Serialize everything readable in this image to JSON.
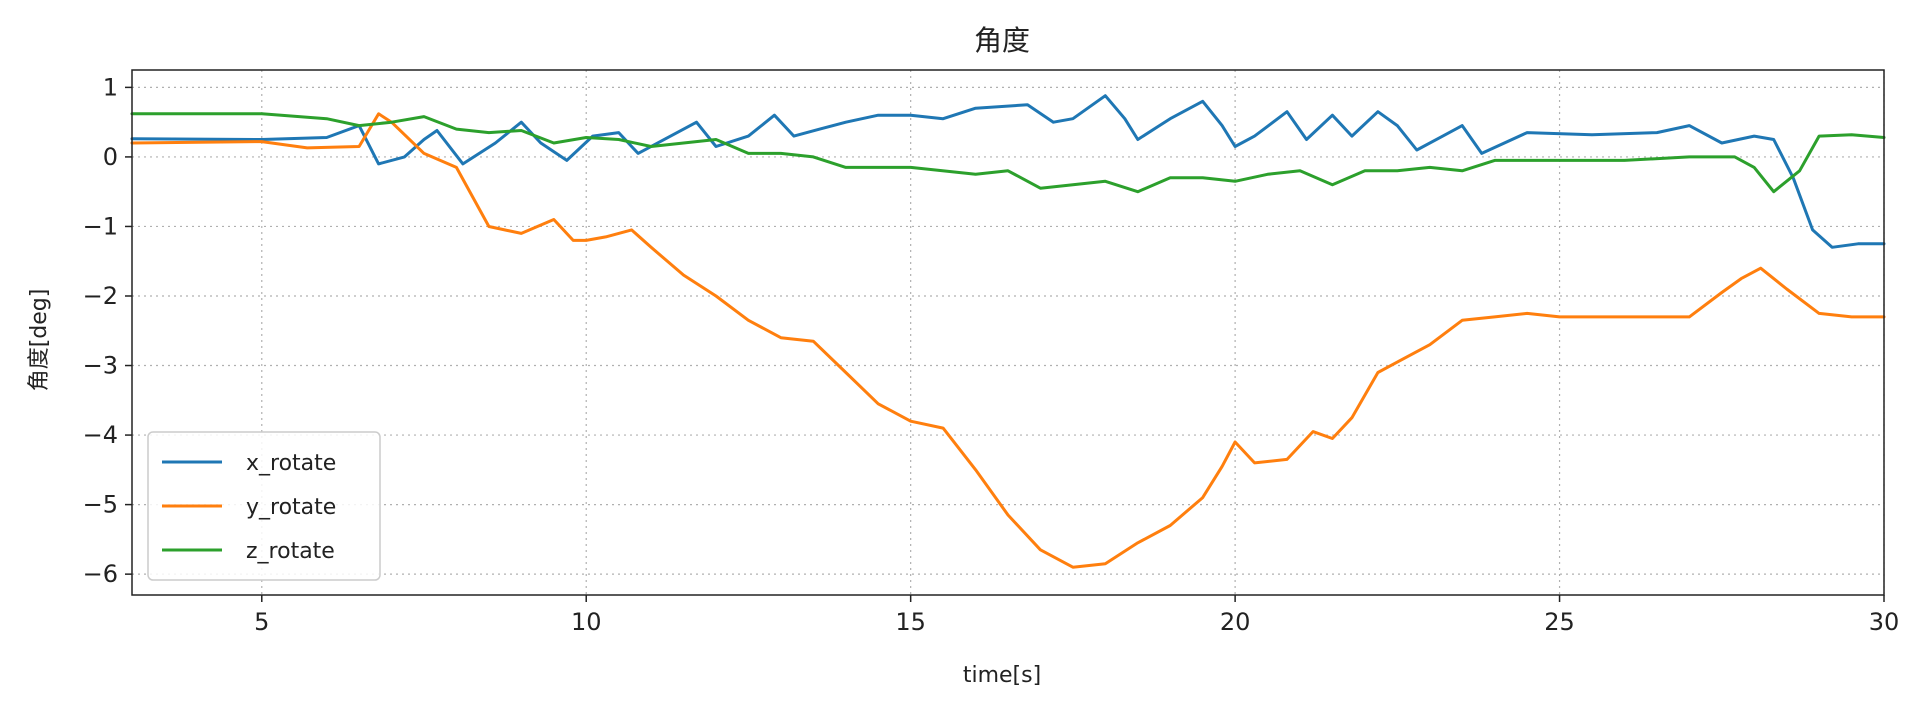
{
  "chart_data": {
    "type": "line",
    "title": "角度",
    "xlabel": "time[s]",
    "ylabel": "角度[deg]",
    "xlim": [
      3,
      30
    ],
    "ylim": [
      -6.3,
      1.25
    ],
    "xticks": [
      5,
      10,
      15,
      20,
      25,
      30
    ],
    "xtick_labels": [
      "5",
      "10",
      "15",
      "20",
      "25",
      "30"
    ],
    "yticks": [
      1,
      0,
      -1,
      -2,
      -3,
      -4,
      -5,
      -6
    ],
    "ytick_labels": [
      "1",
      "0",
      "−1",
      "−2",
      "−3",
      "−4",
      "−5",
      "−6"
    ],
    "grid": true,
    "legend_position": "lower-left",
    "series": [
      {
        "name": "x_rotate",
        "color": "#1f77b4",
        "x": [
          3,
          5,
          6,
          6.5,
          6.8,
          7.2,
          7.5,
          7.7,
          8.1,
          8.6,
          9.0,
          9.3,
          9.7,
          10.1,
          10.5,
          10.8,
          11.3,
          11.7,
          12.0,
          12.5,
          12.9,
          13.2,
          13.6,
          14.0,
          14.5,
          15.0,
          15.5,
          16.0,
          16.8,
          17.2,
          17.5,
          18.0,
          18.3,
          18.5,
          19.0,
          19.5,
          19.8,
          20.0,
          20.3,
          20.8,
          21.1,
          21.5,
          21.8,
          22.2,
          22.5,
          22.8,
          23.2,
          23.5,
          23.8,
          24.5,
          25.5,
          26.5,
          27.0,
          27.5,
          28.0,
          28.3,
          28.6,
          28.9,
          29.2,
          29.6,
          30
        ],
        "y": [
          0.26,
          0.25,
          0.28,
          0.45,
          -0.1,
          0.0,
          0.25,
          0.38,
          -0.1,
          0.2,
          0.5,
          0.2,
          -0.05,
          0.3,
          0.35,
          0.05,
          0.3,
          0.5,
          0.15,
          0.3,
          0.6,
          0.3,
          0.4,
          0.5,
          0.6,
          0.6,
          0.55,
          0.7,
          0.75,
          0.5,
          0.55,
          0.88,
          0.55,
          0.25,
          0.55,
          0.8,
          0.45,
          0.15,
          0.3,
          0.65,
          0.25,
          0.6,
          0.3,
          0.65,
          0.45,
          0.1,
          0.3,
          0.45,
          0.05,
          0.35,
          0.32,
          0.35,
          0.45,
          0.2,
          0.3,
          0.25,
          -0.3,
          -1.05,
          -1.3,
          -1.25,
          -1.25
        ]
      },
      {
        "name": "y_rotate",
        "color": "#ff7f0e",
        "x": [
          3,
          5,
          5.7,
          6.5,
          6.8,
          7.0,
          7.5,
          8.0,
          8.5,
          9.0,
          9.5,
          9.8,
          10.0,
          10.3,
          10.7,
          11.0,
          11.5,
          12.0,
          12.5,
          13.0,
          13.5,
          14.0,
          14.5,
          15.0,
          15.5,
          16.0,
          16.5,
          17.0,
          17.5,
          18.0,
          18.5,
          19.0,
          19.5,
          19.8,
          20.0,
          20.3,
          20.8,
          21.2,
          21.5,
          21.8,
          22.2,
          22.5,
          23.0,
          23.5,
          24.0,
          24.5,
          25.0,
          26.0,
          27.0,
          27.5,
          27.8,
          28.1,
          28.5,
          29.0,
          29.5,
          30
        ],
        "y": [
          0.2,
          0.22,
          0.13,
          0.15,
          0.62,
          0.5,
          0.05,
          -0.15,
          -1.0,
          -1.1,
          -0.9,
          -1.2,
          -1.2,
          -1.15,
          -1.05,
          -1.3,
          -1.7,
          -2.0,
          -2.35,
          -2.6,
          -2.65,
          -3.1,
          -3.55,
          -3.8,
          -3.9,
          -4.5,
          -5.15,
          -5.65,
          -5.9,
          -5.85,
          -5.55,
          -5.3,
          -4.9,
          -4.45,
          -4.1,
          -4.4,
          -4.35,
          -3.95,
          -4.05,
          -3.75,
          -3.1,
          -2.95,
          -2.7,
          -2.35,
          -2.3,
          -2.25,
          -2.3,
          -2.3,
          -2.3,
          -1.95,
          -1.75,
          -1.6,
          -1.9,
          -2.25,
          -2.3,
          -2.3
        ]
      },
      {
        "name": "z_rotate",
        "color": "#2ca02c",
        "x": [
          3,
          5,
          6.0,
          6.5,
          7.0,
          7.5,
          8.0,
          8.5,
          9.0,
          9.5,
          10.0,
          10.5,
          11.0,
          11.5,
          12.0,
          12.5,
          13.0,
          13.5,
          14.0,
          15.0,
          16.0,
          16.5,
          17.0,
          17.5,
          18.0,
          18.5,
          19.0,
          19.5,
          20.0,
          20.5,
          21.0,
          21.5,
          22.0,
          22.5,
          23.0,
          23.5,
          24.0,
          25.0,
          26.0,
          27.0,
          27.7,
          28.0,
          28.3,
          28.7,
          29.0,
          29.5,
          30
        ],
        "y": [
          0.62,
          0.62,
          0.55,
          0.45,
          0.5,
          0.58,
          0.4,
          0.35,
          0.38,
          0.2,
          0.28,
          0.25,
          0.15,
          0.2,
          0.25,
          0.05,
          0.05,
          0.0,
          -0.15,
          -0.15,
          -0.25,
          -0.2,
          -0.45,
          -0.4,
          -0.35,
          -0.5,
          -0.3,
          -0.3,
          -0.35,
          -0.25,
          -0.2,
          -0.4,
          -0.2,
          -0.2,
          -0.15,
          -0.2,
          -0.05,
          -0.05,
          -0.05,
          0.0,
          0.0,
          -0.15,
          -0.5,
          -0.2,
          0.3,
          0.32,
          0.28
        ]
      }
    ]
  }
}
